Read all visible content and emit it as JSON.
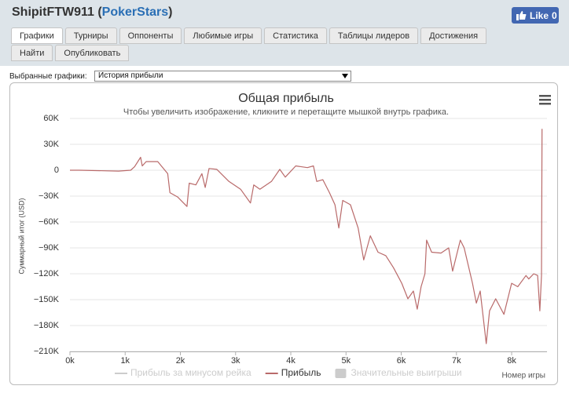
{
  "header": {
    "player": "ShipitFTW911 (",
    "site": "PokerStars",
    "close": ")",
    "like_label": "Like",
    "like_count": 0
  },
  "tabs": [
    "Графики",
    "Турниры",
    "Оппоненты",
    "Любимые игры",
    "Статистика",
    "Таблицы лидеров",
    "Достижения",
    "Найти",
    "Опубликовать"
  ],
  "active_tab": 0,
  "selector": {
    "label": "Выбранные графики:",
    "value": "История прибыли"
  },
  "chart_data": {
    "type": "line",
    "title": "Общая прибыль",
    "subtitle": "Чтобы увеличить изображение, кликните и перетащите мышкой внутрь графика.",
    "y_label": "Суммарный итог (USD)",
    "x_label": "Номер игры",
    "grid": true,
    "xlim": [
      0,
      8640
    ],
    "ylim": [
      -210000,
      60000
    ],
    "xticks": [
      {
        "value": 0,
        "label": "0k"
      },
      {
        "value": 1000,
        "label": "1k"
      },
      {
        "value": 2000,
        "label": "2k"
      },
      {
        "value": 3000,
        "label": "3k"
      },
      {
        "value": 4000,
        "label": "4k"
      },
      {
        "value": 5000,
        "label": "5k"
      },
      {
        "value": 6000,
        "label": "6k"
      },
      {
        "value": 7000,
        "label": "7k"
      },
      {
        "value": 8000,
        "label": "8k"
      }
    ],
    "yticks": [
      {
        "value": 60000,
        "label": "60K"
      },
      {
        "value": 30000,
        "label": "30K"
      },
      0,
      {
        "value": -30000,
        "label": "−30K"
      },
      {
        "value": -60000,
        "label": "−60K"
      },
      {
        "value": -90000,
        "label": "−90K"
      },
      {
        "value": -120000,
        "label": "−120K"
      },
      {
        "value": -150000,
        "label": "−150K"
      },
      {
        "value": -180000,
        "label": "−180K"
      },
      {
        "value": -210000,
        "label": "−210K"
      }
    ],
    "x": [
      0,
      170,
      880,
      1100,
      1170,
      1280,
      1310,
      1380,
      1590,
      1770,
      1810,
      1950,
      2120,
      2160,
      2280,
      2390,
      2450,
      2520,
      2660,
      2880,
      3090,
      3270,
      3330,
      3440,
      3650,
      3800,
      3900,
      4090,
      4300,
      4410,
      4470,
      4580,
      4700,
      4800,
      4870,
      4940,
      5080,
      5220,
      5320,
      5440,
      5580,
      5720,
      5860,
      6010,
      6120,
      6220,
      6290,
      6360,
      6430,
      6460,
      6550,
      6720,
      6860,
      6930,
      7000,
      7070,
      7140,
      7290,
      7360,
      7430,
      7540,
      7600,
      7710,
      7860,
      8000,
      8110,
      8260,
      8310,
      8400,
      8470,
      8510,
      8540,
      8550
    ],
    "series": [
      {
        "name": "Прибыль за минусом рейка",
        "color": "#cccccc",
        "marker": "line",
        "hidden": true
      },
      {
        "name": "Прибыль",
        "color": "#b96a6a",
        "marker": "line",
        "values": [
          0,
          0,
          -1000,
          0,
          4000,
          15000,
          5000,
          10000,
          10000,
          -4000,
          -26000,
          -31000,
          -42000,
          -15000,
          -17000,
          -4000,
          -20000,
          2000,
          1000,
          -13000,
          -22000,
          -38000,
          -17000,
          -22000,
          -13000,
          1000,
          -8000,
          5000,
          3000,
          5000,
          -13000,
          -11000,
          -26000,
          -40000,
          -67000,
          -35000,
          -40000,
          -67000,
          -104000,
          -76000,
          -95000,
          -99000,
          -113000,
          -131000,
          -149000,
          -140000,
          -161000,
          -135000,
          -120000,
          -81000,
          -95000,
          -96000,
          -90000,
          -117000,
          -99000,
          -81000,
          -90000,
          -131000,
          -154000,
          -140000,
          -201000,
          -163000,
          -149000,
          -167000,
          -131000,
          -135000,
          -122000,
          -126000,
          -120000,
          -122000,
          -163000,
          -122000,
          48000
        ]
      },
      {
        "name": "Значительные выигрыши",
        "color": "#cccccc",
        "marker": "box",
        "hidden": true
      }
    ]
  }
}
